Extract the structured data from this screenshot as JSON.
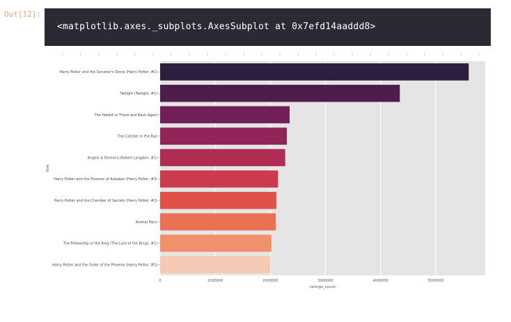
{
  "cell": {
    "prompt": "Out[12]:",
    "output_text": "<matplotlib.axes._subplots.AxesSubplot at 0x7efd14aaddd8>"
  },
  "chart_data": {
    "type": "bar",
    "orientation": "horizontal",
    "title": "",
    "xlabel": "ratings_count",
    "ylabel": "title",
    "xlim": [
      0,
      5900000
    ],
    "x_ticks": [
      0,
      1000000,
      2000000,
      3000000,
      4000000,
      5000000
    ],
    "x_tick_labels": [
      "0",
      "1000000",
      "2000000",
      "3000000",
      "4000000",
      "5000000"
    ],
    "grid": true,
    "categories": [
      "Harry Potter and the Sorcerer's Stone (Harry Potter, #1)",
      "Twilight (Twilight, #1)",
      "The Hobbit or There and Back Again",
      "The Catcher in the Rye",
      "Angels & Demons (Robert Langdon, #1)",
      "Harry Potter and the Prisoner of Azkaban (Harry Potter, #3)",
      "Harry Potter and the Chamber of Secrets (Harry Potter, #2)",
      "Animal Farm",
      "The Fellowship of the Ring (The Lord of the Rings, #1)",
      "Harry Potter and the Order of the Phoenix (Harry Potter, #5)"
    ],
    "values": [
      5600000,
      4350000,
      2350000,
      2300000,
      2270000,
      2140000,
      2110000,
      2100000,
      2020000,
      2000000
    ],
    "colors": [
      "#2c1e3d",
      "#4e1d4b",
      "#711f57",
      "#912559",
      "#b02c55",
      "#cc3a4e",
      "#e0514a",
      "#ea7154",
      "#f1916b",
      "#f5b89f",
      "#f8d6c2"
    ],
    "bar_colors": [
      "#2c1e3d",
      "#4e1d4b",
      "#711f57",
      "#912559",
      "#b02c55",
      "#cc3a4e",
      "#e0514a",
      "#ea7154",
      "#f1916b",
      "#f6c9b4"
    ],
    "background_color": "#e5e5e5"
  }
}
